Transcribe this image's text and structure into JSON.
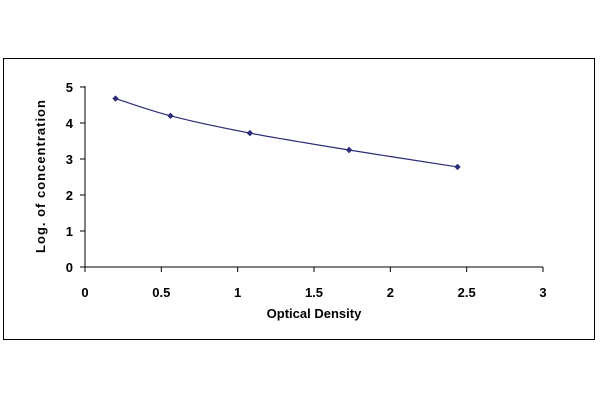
{
  "chart_data": {
    "type": "line",
    "title": "",
    "xlabel": "Optical Density",
    "ylabel": "Log. of concentration",
    "xlim": [
      0,
      3
    ],
    "ylim": [
      0,
      5
    ],
    "x_ticks": [
      "0",
      "0.5",
      "1",
      "1.5",
      "2",
      "2.5",
      "3"
    ],
    "y_ticks": [
      "0",
      "1",
      "2",
      "3",
      "4",
      "5"
    ],
    "grid": false,
    "legend": "none",
    "series": [
      {
        "x": [
          0.2,
          0.56,
          1.08,
          1.73,
          2.44
        ],
        "y": [
          4.68,
          4.2,
          3.72,
          3.25,
          2.78
        ],
        "color": "#2b2b7a"
      }
    ]
  }
}
